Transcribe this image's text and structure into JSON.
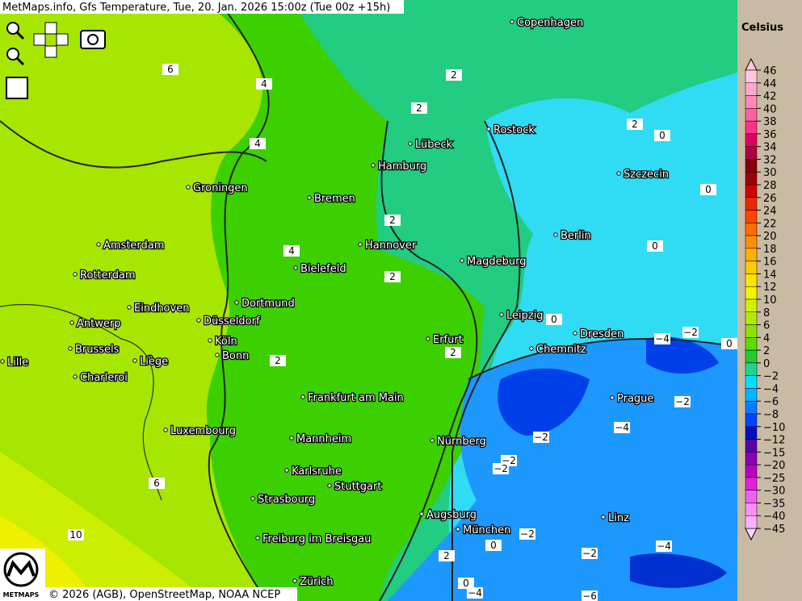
{
  "header": {
    "title": "MetMaps.info, Gfs Temperature, Tue, 20. Jan. 2026 15:00z (Tue 00z +15h)"
  },
  "legend": {
    "title": "Celsius",
    "labels": [
      "46",
      "44",
      "42",
      "40",
      "38",
      "36",
      "34",
      "32",
      "30",
      "28",
      "26",
      "24",
      "22",
      "20",
      "18",
      "16",
      "14",
      "12",
      "10",
      "8",
      "6",
      "4",
      "2",
      "0",
      "−2",
      "−4",
      "−6",
      "−8",
      "−10",
      "−12",
      "−15",
      "−20",
      "−25",
      "−30",
      "−35",
      "−40",
      "−45"
    ],
    "colors": [
      "#ffc8dc",
      "#ffa8cc",
      "#ff88b8",
      "#ff60a0",
      "#ff3088",
      "#e00060",
      "#b00040",
      "#800010",
      "#a00000",
      "#d00000",
      "#e82800",
      "#ff4400",
      "#ff6c00",
      "#ff9000",
      "#ffb000",
      "#ffcc00",
      "#ffe400",
      "#f4f400",
      "#d4f000",
      "#b4ec00",
      "#8ce400",
      "#5cdc00",
      "#22cc30",
      "#20d490",
      "#00e0ff",
      "#00b4ff",
      "#0080ff",
      "#0044ff",
      "#0010c0",
      "#5800a8",
      "#8800b8",
      "#b800c0",
      "#e020e0",
      "#f060f0",
      "#f890f8",
      "#ffb0ff",
      "#ffd8ff"
    ]
  },
  "cities": [
    "Copenhagen",
    "Rostock",
    "Lübeck",
    "Hamburg",
    "Szczecin",
    "Groningen",
    "Bremen",
    "Berlin",
    "Amsterdam",
    "Hannover",
    "Magdeburg",
    "Bielefeld",
    "Rotterdam",
    "Dortmund",
    "Eindhoven",
    "Leipzig",
    "Düsseldorf",
    "Antwerp",
    "Dresden",
    "Erfurt",
    "Köln",
    "Brussels",
    "Chemnitz",
    "Bonn",
    "Liège",
    "Lille",
    "Charleroi",
    "Prague",
    "Frankfurt am Main",
    "Luxembourg",
    "Mannheim",
    "Nürnberg",
    "Karlsruhe",
    "Stuttgart",
    "Strasbourg",
    "Augsburg",
    "Linz",
    "München",
    "Freiburg im Breisgau",
    "Zürich"
  ],
  "contour_labels": [
    "6",
    "4",
    "4",
    "2",
    "2",
    "2",
    "0",
    "0",
    "2",
    "0",
    "4",
    "2",
    "2",
    "2",
    "0",
    "−2",
    "0",
    "−4",
    "−2",
    "−4",
    "−2",
    "−2",
    "−2",
    "6",
    "10",
    "2",
    "0",
    "−2",
    "−2",
    "−4",
    "0",
    "−4",
    "−6"
  ],
  "logo": {
    "text": "METMAPS"
  },
  "footer": {
    "credit": "© 2026 (AGB), OpenStreetMap, NOAA NCEP"
  }
}
